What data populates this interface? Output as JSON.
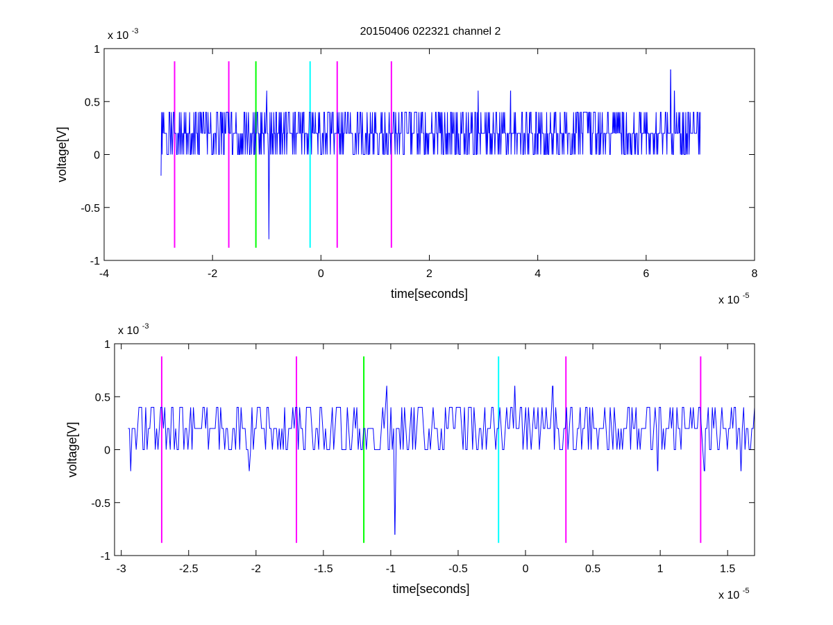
{
  "title": "20150406 022321 channel 2",
  "colors": {
    "signal": "#0000ff",
    "magenta": "#ff00ff",
    "green": "#00ff00",
    "cyan": "#00ffff",
    "axes": "#000000"
  },
  "chart_data": [
    {
      "type": "line",
      "title": "20150406 022321 channel 2",
      "xlabel": "time[seconds]",
      "ylabel": "voltage[V]",
      "x_exponent_label": "x 10",
      "x_exponent": "-5",
      "y_exponent_label": "x 10",
      "y_exponent": "-3",
      "xlim": [
        -4,
        8
      ],
      "ylim": [
        -1,
        1
      ],
      "x_ticks": [
        -4,
        -2,
        0,
        2,
        4,
        6,
        8
      ],
      "x_tick_labels": [
        "-4",
        "-2",
        "0",
        "2",
        "4",
        "6",
        "8"
      ],
      "y_ticks": [
        -1,
        -0.5,
        0,
        0.5,
        1
      ],
      "y_tick_labels": [
        "-1",
        "-0.5",
        "0",
        "0.5",
        "1"
      ],
      "grid": false,
      "series": [
        {
          "color": "#0000ff",
          "x_range": [
            -2.95,
            7.0
          ],
          "levels": [
            0,
            0.2,
            0.4
          ],
          "spikes": [
            {
              "x": -2.95,
              "y": -0.2
            },
            {
              "x": -1.0,
              "y": 0.6
            },
            {
              "x": -0.96,
              "y": -0.8
            },
            {
              "x": 2.9,
              "y": 0.6
            },
            {
              "x": 3.5,
              "y": 0.6
            },
            {
              "x": 6.45,
              "y": 0.8
            },
            {
              "x": 6.52,
              "y": 0.6
            }
          ]
        }
      ],
      "markers": [
        {
          "x": -2.7,
          "color": "#ff00ff",
          "ymin": -0.88,
          "ymax": 0.88
        },
        {
          "x": -1.7,
          "color": "#ff00ff",
          "ymin": -0.88,
          "ymax": 0.88
        },
        {
          "x": -1.2,
          "color": "#00ff00",
          "ymin": -0.88,
          "ymax": 0.88
        },
        {
          "x": -0.2,
          "color": "#00ffff",
          "ymin": -0.88,
          "ymax": 0.88
        },
        {
          "x": 0.3,
          "color": "#ff00ff",
          "ymin": -0.88,
          "ymax": 0.88
        },
        {
          "x": 1.3,
          "color": "#ff00ff",
          "ymin": -0.88,
          "ymax": 0.88
        }
      ]
    },
    {
      "type": "line",
      "title": "",
      "xlabel": "time[seconds]",
      "ylabel": "voltage[V]",
      "x_exponent_label": "x 10",
      "x_exponent": "-5",
      "y_exponent_label": "x 10",
      "y_exponent": "-3",
      "xlim": [
        -3.05,
        1.7
      ],
      "ylim": [
        -1,
        1
      ],
      "x_ticks": [
        -3,
        -2.5,
        -2,
        -1.5,
        -1,
        -0.5,
        0,
        0.5,
        1,
        1.5
      ],
      "x_tick_labels": [
        "-3",
        "-2.5",
        "-2",
        "-1.5",
        "-1",
        "-0.5",
        "0",
        "0.5",
        "1",
        "1.5"
      ],
      "y_ticks": [
        -1,
        -0.5,
        0,
        0.5,
        1
      ],
      "y_tick_labels": [
        "-1",
        "-0.5",
        "0",
        "0.5",
        "1"
      ],
      "grid": false,
      "series": [
        {
          "color": "#0000ff",
          "x_range": [
            -2.95,
            1.7
          ],
          "levels": [
            0,
            0.2,
            0.4
          ],
          "spikes": [
            {
              "x": -2.93,
              "y": -0.2
            },
            {
              "x": -2.05,
              "y": -0.2
            },
            {
              "x": -1.03,
              "y": 0.6
            },
            {
              "x": -0.97,
              "y": -0.8
            },
            {
              "x": -0.08,
              "y": 0.6
            },
            {
              "x": 0.2,
              "y": 0.6
            },
            {
              "x": 0.98,
              "y": -0.2
            },
            {
              "x": 1.33,
              "y": -0.2
            },
            {
              "x": 1.6,
              "y": -0.2
            }
          ]
        }
      ],
      "markers": [
        {
          "x": -2.7,
          "color": "#ff00ff",
          "ymin": -0.88,
          "ymax": 0.88
        },
        {
          "x": -1.7,
          "color": "#ff00ff",
          "ymin": -0.88,
          "ymax": 0.88
        },
        {
          "x": -1.2,
          "color": "#00ff00",
          "ymin": -0.88,
          "ymax": 0.88
        },
        {
          "x": -0.2,
          "color": "#00ffff",
          "ymin": -0.88,
          "ymax": 0.88
        },
        {
          "x": 0.3,
          "color": "#ff00ff",
          "ymin": -0.88,
          "ymax": 0.88
        },
        {
          "x": 1.3,
          "color": "#ff00ff",
          "ymin": -0.88,
          "ymax": 0.88
        }
      ]
    }
  ]
}
